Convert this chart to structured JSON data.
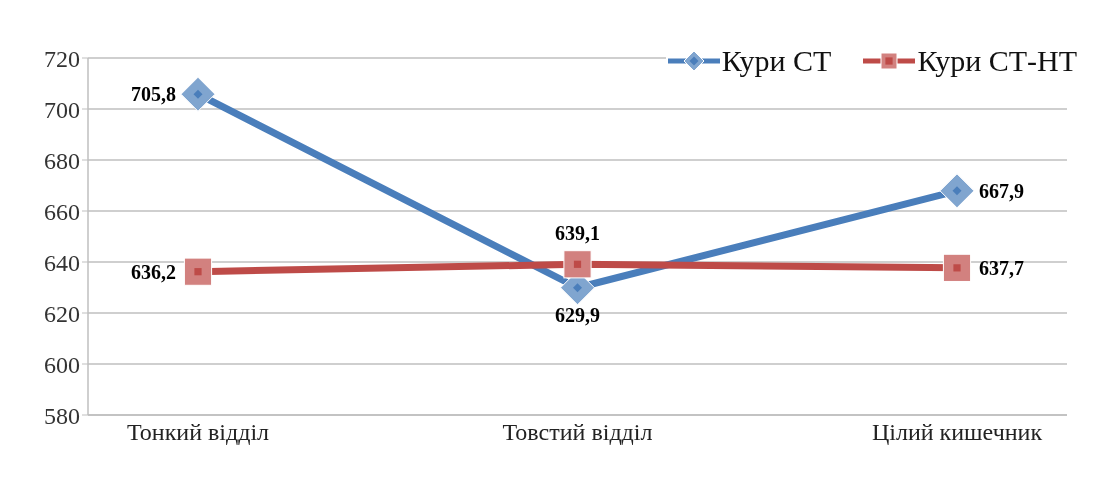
{
  "chart_data": {
    "type": "line",
    "categories": [
      "Тонкий відділ",
      "Товстий відділ",
      "Цілий кишечник"
    ],
    "series": [
      {
        "name": "Кури СТ",
        "color": "#4a7ebb",
        "marker": "diamond",
        "values": [
          705.8,
          629.9,
          667.9
        ],
        "value_labels": [
          "705,8",
          "629,9",
          "667,9"
        ]
      },
      {
        "name": "Кури СТ-НТ",
        "color": "#be4b48",
        "marker": "square",
        "values": [
          636.2,
          639.1,
          637.7
        ],
        "value_labels": [
          "636,2",
          "639,1",
          "637,7"
        ]
      }
    ],
    "ylim": [
      580,
      720
    ],
    "yticks": [
      580,
      600,
      620,
      640,
      660,
      680,
      700,
      720
    ],
    "grid": "y",
    "legend": "top right",
    "line_style": "solid"
  }
}
